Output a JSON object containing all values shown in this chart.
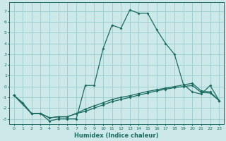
{
  "xlabel": "Humidex (Indice chaleur)",
  "bg_color": "#cce8e8",
  "grid_color": "#99cccc",
  "line_color": "#1a6b60",
  "xlim": [
    -0.5,
    23.5
  ],
  "ylim": [
    -3.5,
    7.8
  ],
  "xticks": [
    0,
    1,
    2,
    3,
    4,
    5,
    6,
    7,
    8,
    9,
    10,
    11,
    12,
    13,
    14,
    15,
    16,
    17,
    18,
    19,
    20,
    21,
    22,
    23
  ],
  "yticks": [
    -3,
    -2,
    -1,
    0,
    1,
    2,
    3,
    4,
    5,
    6,
    7
  ],
  "series1_x": [
    0,
    1,
    2,
    3,
    4,
    5,
    6,
    7,
    8,
    9,
    10,
    11,
    12,
    13,
    14,
    15,
    16,
    17,
    18,
    19,
    20,
    21,
    22,
    23
  ],
  "series1_y": [
    -0.8,
    -1.5,
    -2.5,
    -2.5,
    -3.2,
    -3.0,
    -3.0,
    -3.0,
    0.1,
    0.1,
    3.5,
    5.7,
    5.4,
    7.1,
    6.8,
    6.8,
    5.3,
    4.0,
    3.0,
    0.2,
    -0.5,
    -0.7,
    0.1,
    -1.3
  ],
  "series2_x": [
    0,
    2,
    3,
    4,
    5,
    6,
    7,
    8,
    9,
    10,
    11,
    12,
    13,
    14,
    15,
    16,
    17,
    18,
    19,
    20,
    21,
    22,
    23
  ],
  "series2_y": [
    -0.8,
    -2.5,
    -2.5,
    -2.9,
    -2.8,
    -2.8,
    -2.5,
    -2.3,
    -2.0,
    -1.7,
    -1.4,
    -1.2,
    -1.0,
    -0.8,
    -0.6,
    -0.4,
    -0.25,
    -0.1,
    0.0,
    0.1,
    -0.55,
    -0.6,
    -1.3
  ],
  "series3_x": [
    0,
    2,
    3,
    4,
    5,
    6,
    7,
    8,
    9,
    10,
    11,
    12,
    13,
    14,
    15,
    16,
    17,
    18,
    19,
    20,
    21,
    22,
    23
  ],
  "series3_y": [
    -0.8,
    -2.5,
    -2.5,
    -2.9,
    -2.8,
    -2.8,
    -2.5,
    -2.1,
    -1.8,
    -1.5,
    -1.2,
    -1.0,
    -0.85,
    -0.65,
    -0.45,
    -0.3,
    -0.15,
    -0.0,
    0.15,
    0.3,
    -0.4,
    -0.5,
    -1.3
  ]
}
